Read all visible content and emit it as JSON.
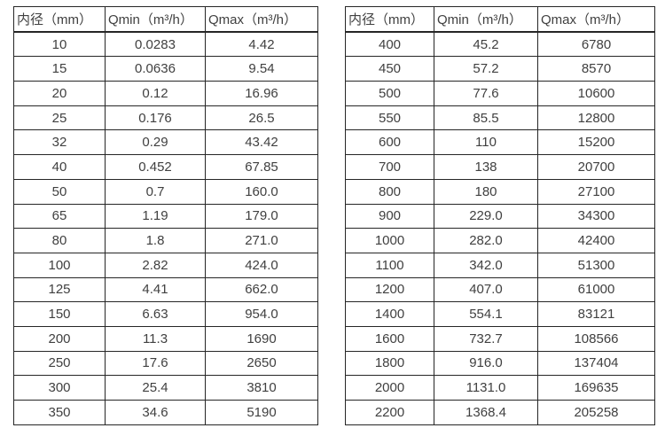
{
  "colors": {
    "background": "#ffffff",
    "text": "#404040",
    "border": "#262626"
  },
  "tables": [
    {
      "name": "flow-rate-table-small-diameters",
      "headers": [
        "内径（mm）",
        "Qmin（m³/h）",
        "Qmax（m³/h）"
      ],
      "rows": [
        [
          "10",
          "0.0283",
          "4.42"
        ],
        [
          "15",
          "0.0636",
          "9.54"
        ],
        [
          "20",
          "0.12",
          "16.96"
        ],
        [
          "25",
          "0.176",
          "26.5"
        ],
        [
          "32",
          "0.29",
          "43.42"
        ],
        [
          "40",
          "0.452",
          "67.85"
        ],
        [
          "50",
          "0.7",
          "160.0"
        ],
        [
          "65",
          "1.19",
          "179.0"
        ],
        [
          "80",
          "1.8",
          "271.0"
        ],
        [
          "100",
          "2.82",
          "424.0"
        ],
        [
          "125",
          "4.41",
          "662.0"
        ],
        [
          "150",
          "6.63",
          "954.0"
        ],
        [
          "200",
          "11.3",
          "1690"
        ],
        [
          "250",
          "17.6",
          "2650"
        ],
        [
          "300",
          "25.4",
          "3810"
        ],
        [
          "350",
          "34.6",
          "5190"
        ]
      ]
    },
    {
      "name": "flow-rate-table-large-diameters",
      "headers": [
        "内径（mm）",
        "Qmin（m³/h）",
        "Qmax（m³/h）"
      ],
      "rows": [
        [
          "400",
          "45.2",
          "6780"
        ],
        [
          "450",
          "57.2",
          "8570"
        ],
        [
          "500",
          "77.6",
          "10600"
        ],
        [
          "550",
          "85.5",
          "12800"
        ],
        [
          "600",
          "110",
          "15200"
        ],
        [
          "700",
          "138",
          "20700"
        ],
        [
          "800",
          "180",
          "27100"
        ],
        [
          "900",
          "229.0",
          "34300"
        ],
        [
          "1000",
          "282.0",
          "42400"
        ],
        [
          "1100",
          "342.0",
          "51300"
        ],
        [
          "1200",
          "407.0",
          "61000"
        ],
        [
          "1400",
          "554.1",
          "83121"
        ],
        [
          "1600",
          "732.7",
          "108566"
        ],
        [
          "1800",
          "916.0",
          "137404"
        ],
        [
          "2000",
          "1131.0",
          "169635"
        ],
        [
          "2200",
          "1368.4",
          "205258"
        ]
      ]
    }
  ]
}
